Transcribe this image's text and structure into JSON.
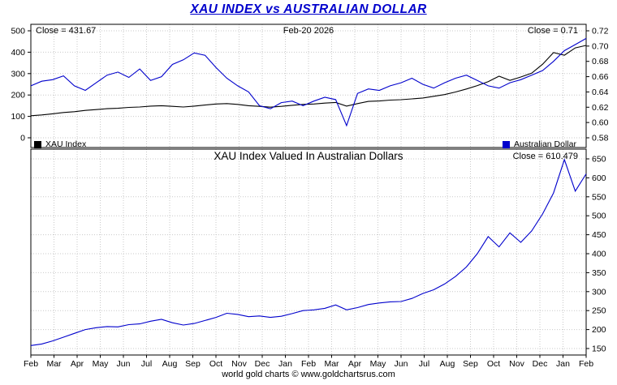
{
  "title": "XAU INDEX vs AUSTRALIAN DOLLAR",
  "top_panel": {
    "close_left_label": "Close = 431.67",
    "date_label": "Feb-20  2026",
    "close_right_label": "Close = 0.71",
    "legend": [
      {
        "label": "XAU Index",
        "color": "#000000"
      },
      {
        "label": "Australian Dollar",
        "color": "#0000cc"
      }
    ]
  },
  "bottom_panel": {
    "title": "XAU Index Valued In Australian Dollars",
    "close_label": "Close = 610.479"
  },
  "footer": "world gold charts © www.goldchartsrus.com",
  "colors": {
    "title": "#0000cc",
    "line_black": "#000000",
    "line_blue": "#0000cc",
    "grid": "#c9c9c9",
    "border": "#000000",
    "background": "#ffffff"
  },
  "chart_data": [
    {
      "type": "line",
      "title": "XAU INDEX vs AUSTRALIAN DOLLAR",
      "x_labels": [
        "Feb",
        "Mar",
        "Apr",
        "May",
        "Jun",
        "Jul",
        "Aug",
        "Sep",
        "Oct",
        "Nov",
        "Dec",
        "Jan",
        "Feb",
        "Mar",
        "Apr",
        "May",
        "Jun",
        "Jul",
        "Aug",
        "Sep",
        "Oct",
        "Nov",
        "Dec",
        "Jan",
        "Feb"
      ],
      "grid": true,
      "legend_position": "bottom",
      "left_axis": {
        "range": [
          0,
          500
        ],
        "ticks": [
          0,
          100,
          200,
          300,
          400,
          500
        ]
      },
      "right_axis": {
        "range": [
          0.58,
          0.72
        ],
        "ticks": [
          0.58,
          0.6,
          0.62,
          0.64,
          0.66,
          0.68,
          0.7,
          0.72
        ],
        "decimals": 2
      },
      "series": [
        {
          "name": "XAU Index",
          "axis": "left",
          "color": "#000000",
          "close": 431.67,
          "values": [
            103,
            107,
            112,
            118,
            122,
            128,
            132,
            136,
            138,
            142,
            144,
            148,
            150,
            147,
            144,
            148,
            153,
            158,
            160,
            156,
            150,
            147,
            143,
            147,
            152,
            156,
            158,
            162,
            165,
            148,
            160,
            170,
            172,
            176,
            178,
            182,
            186,
            194,
            202,
            214,
            228,
            244,
            262,
            288,
            268,
            284,
            302,
            344,
            398,
            386,
            420,
            431.67
          ]
        },
        {
          "name": "Australian Dollar",
          "axis": "right",
          "color": "#0000cc",
          "close": 0.71,
          "values": [
            0.648,
            0.654,
            0.656,
            0.661,
            0.648,
            0.642,
            0.652,
            0.662,
            0.666,
            0.659,
            0.67,
            0.655,
            0.66,
            0.676,
            0.682,
            0.691,
            0.688,
            0.672,
            0.658,
            0.648,
            0.64,
            0.622,
            0.618,
            0.626,
            0.628,
            0.622,
            0.628,
            0.633,
            0.63,
            0.596,
            0.638,
            0.644,
            0.642,
            0.648,
            0.652,
            0.658,
            0.65,
            0.645,
            0.652,
            0.658,
            0.662,
            0.655,
            0.648,
            0.645,
            0.652,
            0.656,
            0.662,
            0.668,
            0.68,
            0.694,
            0.702,
            0.71
          ]
        }
      ]
    },
    {
      "type": "line",
      "title": "XAU Index Valued In Australian Dollars",
      "x_labels": [
        "Feb",
        "Mar",
        "Apr",
        "May",
        "Jun",
        "Jul",
        "Aug",
        "Sep",
        "Oct",
        "Nov",
        "Dec",
        "Jan",
        "Feb",
        "Mar",
        "Apr",
        "May",
        "Jun",
        "Jul",
        "Aug",
        "Sep",
        "Oct",
        "Nov",
        "Dec",
        "Jan",
        "Feb"
      ],
      "grid": true,
      "right_axis": {
        "range": [
          150,
          650
        ],
        "ticks": [
          150,
          200,
          250,
          300,
          350,
          400,
          450,
          500,
          550,
          600,
          650
        ]
      },
      "series": [
        {
          "name": "XAU Index Valued In Australian Dollars",
          "axis": "right",
          "color": "#0000cc",
          "close": 610.479,
          "values": [
            158,
            162,
            170,
            180,
            190,
            200,
            205,
            208,
            207,
            213,
            215,
            222,
            227,
            218,
            212,
            216,
            224,
            232,
            243,
            240,
            234,
            236,
            232,
            235,
            242,
            250,
            252,
            256,
            265,
            252,
            258,
            266,
            270,
            273,
            274,
            282,
            295,
            305,
            320,
            340,
            365,
            400,
            445,
            418,
            455,
            430,
            460,
            505,
            560,
            648,
            565,
            610.479
          ]
        }
      ]
    }
  ]
}
